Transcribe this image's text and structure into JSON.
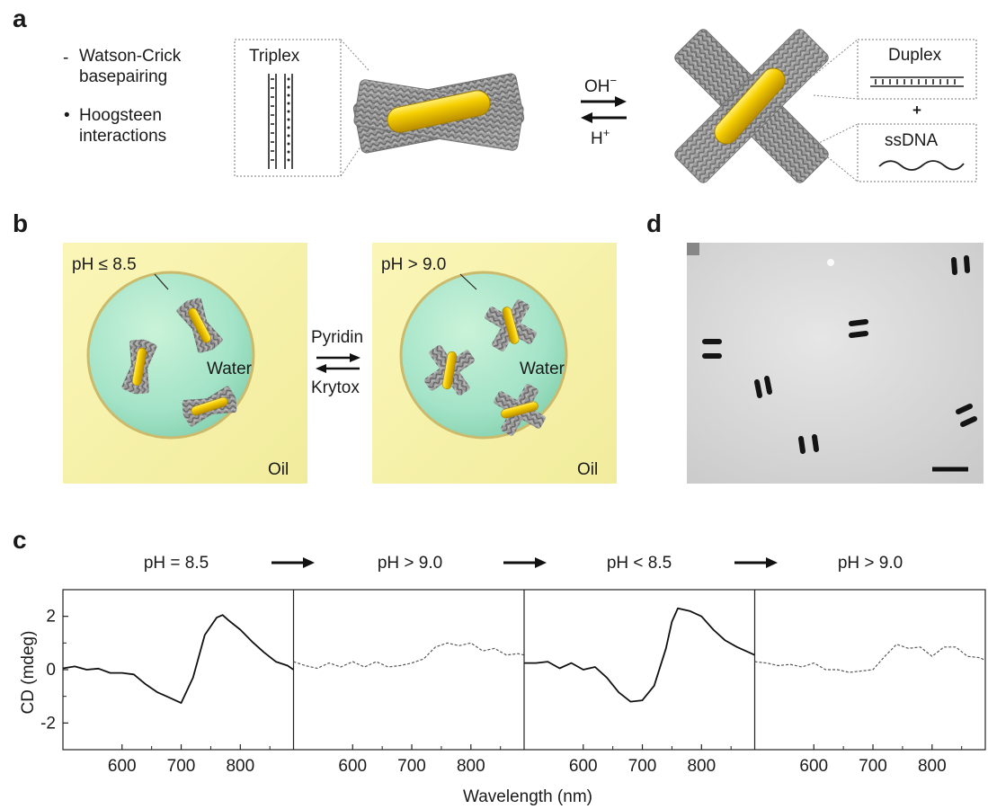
{
  "panel_letters": {
    "a": "a",
    "b": "b",
    "c": "c",
    "d": "d"
  },
  "panel_a": {
    "legend": {
      "dash_symbol": "-",
      "dot_symbol": "•",
      "item1_line1": "Watson-Crick",
      "item1_line2": "basepairing",
      "item2_line1": "Hoogsteen",
      "item2_line2": "interactions"
    },
    "triplex_label": "Triplex",
    "forward_label": "OH",
    "forward_sup": "−",
    "reverse_label": "H",
    "reverse_sup": "+",
    "duplex_label": "Duplex",
    "plus_label": "+",
    "ssdna_label": "ssDNA"
  },
  "panel_b": {
    "left_ph": "pH ≤ 8.5",
    "right_ph": "pH > 9.0",
    "water_label": "Water",
    "oil_label": "Oil",
    "forward_label": "Pyridin",
    "reverse_label": "Krytox"
  },
  "panel_c": {
    "conditions": [
      "pH = 8.5",
      "pH > 9.0",
      "pH < 8.5",
      "pH > 9.0"
    ],
    "ylabel": "CD (mdeg)",
    "xlabel": "Wavelength (nm)",
    "yticks": [
      "-2",
      "0",
      "2"
    ],
    "xticks": [
      "600",
      "700",
      "800"
    ]
  },
  "chart_data": {
    "type": "line",
    "xlabel": "Wavelength (nm)",
    "ylabel": "CD (mdeg)",
    "xlim": [
      500,
      890
    ],
    "ylim": [
      -3,
      3
    ],
    "yticks": [
      -2,
      0,
      2
    ],
    "xticks": [
      600,
      700,
      800
    ],
    "panels": [
      {
        "condition": "pH = 8.5",
        "style": "solid",
        "x": [
          500,
          520,
          540,
          560,
          580,
          600,
          620,
          640,
          660,
          680,
          700,
          720,
          740,
          760,
          770,
          780,
          800,
          820,
          840,
          860,
          880,
          890
        ],
        "y": [
          0.05,
          0.12,
          0.0,
          0.04,
          -0.12,
          -0.12,
          -0.18,
          -0.55,
          -0.85,
          -1.05,
          -1.25,
          -0.3,
          1.3,
          1.95,
          2.05,
          1.85,
          1.5,
          1.05,
          0.65,
          0.3,
          0.15,
          0.0
        ]
      },
      {
        "condition": "pH > 9.0",
        "style": "dashed",
        "x": [
          500,
          520,
          540,
          560,
          580,
          600,
          620,
          640,
          660,
          680,
          700,
          720,
          740,
          760,
          780,
          800,
          820,
          840,
          860,
          880,
          890
        ],
        "y": [
          0.3,
          0.15,
          0.05,
          0.25,
          0.1,
          0.3,
          0.1,
          0.3,
          0.1,
          0.15,
          0.25,
          0.4,
          0.85,
          1.0,
          0.9,
          1.0,
          0.7,
          0.8,
          0.55,
          0.6,
          0.55
        ]
      },
      {
        "condition": "pH < 8.5",
        "style": "solid",
        "x": [
          500,
          520,
          540,
          560,
          580,
          600,
          620,
          640,
          660,
          680,
          700,
          720,
          740,
          750,
          760,
          780,
          800,
          820,
          840,
          860,
          880,
          890
        ],
        "y": [
          0.25,
          0.25,
          0.3,
          0.05,
          0.25,
          0.0,
          0.1,
          -0.3,
          -0.85,
          -1.2,
          -1.15,
          -0.6,
          0.8,
          1.8,
          2.3,
          2.2,
          2.0,
          1.5,
          1.1,
          0.85,
          0.65,
          0.55
        ]
      },
      {
        "condition": "pH > 9.0",
        "style": "dashed",
        "x": [
          500,
          520,
          540,
          560,
          580,
          600,
          620,
          640,
          660,
          680,
          700,
          720,
          740,
          760,
          780,
          800,
          820,
          840,
          860,
          880,
          890
        ],
        "y": [
          0.3,
          0.25,
          0.15,
          0.2,
          0.1,
          0.25,
          0.0,
          0.0,
          -0.1,
          -0.05,
          0.0,
          0.5,
          0.95,
          0.8,
          0.85,
          0.5,
          0.85,
          0.85,
          0.5,
          0.45,
          0.35
        ]
      }
    ]
  },
  "panel_d": {
    "scale_bar": true
  },
  "colors": {
    "gold": "#f2c200",
    "gold_dark": "#c69a00",
    "origami_grey": "#8e8e8e",
    "oil_bg": "#f6f2ad",
    "water_drop": "#9fe3c9",
    "tem_bg": "#d8d8d8"
  }
}
